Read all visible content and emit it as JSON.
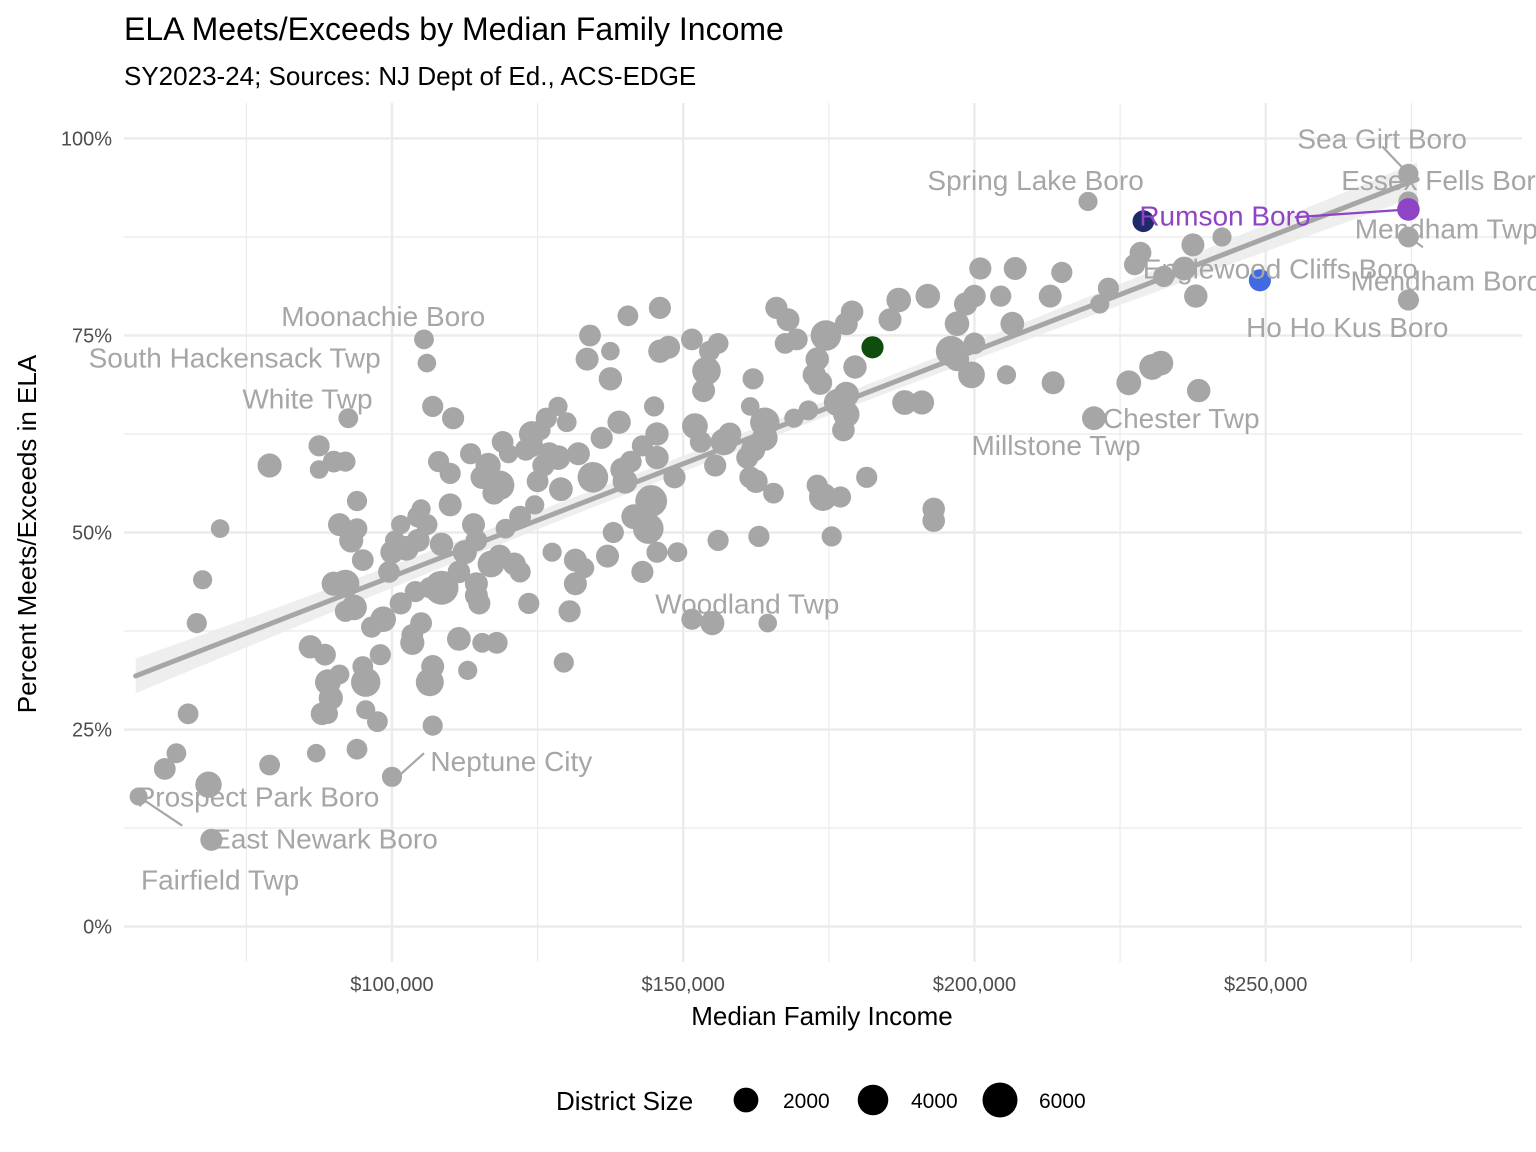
{
  "chart_data": {
    "type": "scatter",
    "title": "ELA Meets/Exceeds by Median Family Income",
    "subtitle": "SY2023-24; Sources: NJ Dept of Ed., ACS-EDGE",
    "xlabel": "Median Family Income",
    "ylabel": "Percent Meets/Exceeds in ELA",
    "xlim": [
      54000,
      294000
    ],
    "ylim": [
      -0.045,
      1.045
    ],
    "x_ticks": [
      100000,
      150000,
      200000,
      250000
    ],
    "x_tick_labels": [
      "$100,000",
      "$150,000",
      "$200,000",
      "$250,000"
    ],
    "y_ticks": [
      0,
      0.25,
      0.5,
      0.75,
      1.0
    ],
    "y_tick_labels": [
      "0%",
      "25%",
      "50%",
      "75%",
      "100%"
    ],
    "grid": true,
    "colors": {
      "default": "#a6a6a6",
      "trend": "#a6a6a6",
      "band": "#ebebeb",
      "grid": "#ebebeb",
      "rumson": "#8e44c4",
      "navy": "#1f2a6b",
      "blue": "#4169e1",
      "green": "#0f4d0f"
    },
    "trend": {
      "x": [
        56000,
        276000
      ],
      "y": [
        0.318,
        0.948
      ],
      "se": 0.022
    },
    "size_legend": {
      "title": "District Size",
      "values": [
        2000,
        4000,
        6000
      ],
      "labels": [
        "2000",
        "4000",
        "6000"
      ]
    },
    "points": [
      [
        56500,
        0.165,
        500
      ],
      [
        61000,
        0.2,
        1200
      ],
      [
        63000,
        0.22,
        800
      ],
      [
        65000,
        0.27,
        1000
      ],
      [
        66500,
        0.385,
        900
      ],
      [
        67500,
        0.44,
        700
      ],
      [
        68500,
        0.18,
        2500
      ],
      [
        69000,
        0.11,
        1300
      ],
      [
        70500,
        0.505,
        600
      ],
      [
        79000,
        0.205,
        1000
      ],
      [
        79000,
        0.585,
        1800
      ],
      [
        86000,
        0.355,
        1600
      ],
      [
        87000,
        0.22,
        600
      ],
      [
        87500,
        0.61,
        1100
      ],
      [
        87500,
        0.58,
        600
      ],
      [
        88000,
        0.27,
        1400
      ],
      [
        88500,
        0.345,
        1200
      ],
      [
        89000,
        0.31,
        2300
      ],
      [
        89000,
        0.27,
        900
      ],
      [
        89500,
        0.29,
        1800
      ],
      [
        90000,
        0.435,
        1800
      ],
      [
        90000,
        0.59,
        1200
      ],
      [
        91000,
        0.32,
        800
      ],
      [
        91000,
        0.51,
        1500
      ],
      [
        92000,
        0.435,
        3000
      ],
      [
        92000,
        0.59,
        900
      ],
      [
        92000,
        0.4,
        1100
      ],
      [
        92500,
        0.645,
        800
      ],
      [
        93000,
        0.49,
        1800
      ],
      [
        93500,
        0.405,
        2200
      ],
      [
        94000,
        0.505,
        1000
      ],
      [
        94000,
        0.225,
        1000
      ],
      [
        94000,
        0.54,
        900
      ],
      [
        95000,
        0.33,
        1000
      ],
      [
        95000,
        0.465,
        1200
      ],
      [
        95500,
        0.275,
        700
      ],
      [
        95500,
        0.31,
        3500
      ],
      [
        96500,
        0.38,
        1100
      ],
      [
        97500,
        0.26,
        1000
      ],
      [
        98000,
        0.345,
        1100
      ],
      [
        98500,
        0.39,
        2200
      ],
      [
        99500,
        0.45,
        1200
      ],
      [
        100000,
        0.19,
        900
      ],
      [
        100000,
        0.475,
        1600
      ],
      [
        100500,
        0.49,
        800
      ],
      [
        101500,
        0.51,
        700
      ],
      [
        101500,
        0.41,
        1300
      ],
      [
        102500,
        0.48,
        2000
      ],
      [
        103500,
        0.37,
        1200
      ],
      [
        103500,
        0.36,
        1800
      ],
      [
        104000,
        0.425,
        1100
      ],
      [
        104500,
        0.52,
        1200
      ],
      [
        104500,
        0.49,
        1500
      ],
      [
        105000,
        0.53,
        700
      ],
      [
        105000,
        0.385,
        1200
      ],
      [
        105500,
        0.745,
        800
      ],
      [
        106000,
        0.715,
        600
      ],
      [
        106000,
        0.51,
        1100
      ],
      [
        106500,
        0.43,
        1100
      ],
      [
        106500,
        0.31,
        3000
      ],
      [
        107000,
        0.33,
        1500
      ],
      [
        107000,
        0.66,
        1100
      ],
      [
        107000,
        0.255,
        900
      ],
      [
        108000,
        0.59,
        1100
      ],
      [
        108500,
        0.43,
        5500
      ],
      [
        108500,
        0.485,
        1600
      ],
      [
        110000,
        0.575,
        1100
      ],
      [
        110000,
        0.535,
        1500
      ],
      [
        110500,
        0.645,
        1300
      ],
      [
        111500,
        0.45,
        1400
      ],
      [
        111500,
        0.365,
        1700
      ],
      [
        112500,
        0.475,
        1800
      ],
      [
        113000,
        0.325,
        700
      ],
      [
        113500,
        0.6,
        1100
      ],
      [
        114000,
        0.51,
        1500
      ],
      [
        114500,
        0.49,
        1200
      ],
      [
        114500,
        0.42,
        1500
      ],
      [
        114500,
        0.435,
        1500
      ],
      [
        115000,
        0.41,
        1300
      ],
      [
        115500,
        0.57,
        1600
      ],
      [
        115500,
        0.36,
        800
      ],
      [
        116500,
        0.585,
        2100
      ],
      [
        117000,
        0.46,
        2600
      ],
      [
        117500,
        0.55,
        1500
      ],
      [
        118000,
        0.36,
        1200
      ],
      [
        118500,
        0.56,
        3500
      ],
      [
        118500,
        0.47,
        1500
      ],
      [
        119000,
        0.615,
        1200
      ],
      [
        119500,
        0.505,
        800
      ],
      [
        120000,
        0.6,
        700
      ],
      [
        121000,
        0.46,
        1500
      ],
      [
        122000,
        0.52,
        1200
      ],
      [
        122000,
        0.45,
        1100
      ],
      [
        123000,
        0.605,
        1200
      ],
      [
        123500,
        0.41,
        1100
      ],
      [
        124000,
        0.61,
        1400
      ],
      [
        124000,
        0.625,
        2300
      ],
      [
        124500,
        0.535,
        700
      ],
      [
        125000,
        0.565,
        1200
      ],
      [
        125500,
        0.63,
        900
      ],
      [
        126000,
        0.585,
        1300
      ],
      [
        126500,
        0.645,
        1100
      ],
      [
        127000,
        0.6,
        1500
      ],
      [
        127500,
        0.475,
        700
      ],
      [
        128500,
        0.595,
        2000
      ],
      [
        128500,
        0.66,
        700
      ],
      [
        129000,
        0.555,
        1700
      ],
      [
        129500,
        0.335,
        900
      ],
      [
        130000,
        0.64,
        800
      ],
      [
        130500,
        0.4,
        1300
      ],
      [
        131500,
        0.435,
        1500
      ],
      [
        131500,
        0.465,
        1500
      ],
      [
        132000,
        0.6,
        1500
      ],
      [
        133000,
        0.455,
        900
      ],
      [
        133500,
        0.72,
        1500
      ],
      [
        134000,
        0.75,
        1200
      ],
      [
        134500,
        0.57,
        4000
      ],
      [
        136000,
        0.62,
        1300
      ],
      [
        137000,
        0.47,
        1500
      ],
      [
        137500,
        0.695,
        1600
      ],
      [
        137500,
        0.73,
        600
      ],
      [
        138000,
        0.5,
        1100
      ],
      [
        139000,
        0.64,
        1600
      ],
      [
        139500,
        0.58,
        1600
      ],
      [
        140000,
        0.565,
        2000
      ],
      [
        140500,
        0.775,
        1000
      ],
      [
        141000,
        0.59,
        1200
      ],
      [
        141500,
        0.52,
        2000
      ],
      [
        143000,
        0.45,
        1300
      ],
      [
        143000,
        0.61,
        1100
      ],
      [
        144000,
        0.505,
        4000
      ],
      [
        144500,
        0.54,
        4500
      ],
      [
        145000,
        0.66,
        900
      ],
      [
        145500,
        0.625,
        1600
      ],
      [
        145500,
        0.595,
        1600
      ],
      [
        145500,
        0.475,
        1100
      ],
      [
        146000,
        0.785,
        1300
      ],
      [
        146000,
        0.73,
        1600
      ],
      [
        147500,
        0.735,
        1500
      ],
      [
        148500,
        0.57,
        1300
      ],
      [
        149000,
        0.475,
        800
      ],
      [
        151500,
        0.745,
        1200
      ],
      [
        151500,
        0.39,
        1100
      ],
      [
        152000,
        0.635,
        2300
      ],
      [
        153000,
        0.615,
        1200
      ],
      [
        153500,
        0.68,
        1500
      ],
      [
        154000,
        0.705,
        3200
      ],
      [
        154500,
        0.73,
        1000
      ],
      [
        155000,
        0.385,
        1800
      ],
      [
        155500,
        0.585,
        1300
      ],
      [
        156000,
        0.49,
        1100
      ],
      [
        156000,
        0.74,
        1000
      ],
      [
        157000,
        0.615,
        2600
      ],
      [
        158000,
        0.625,
        1500
      ],
      [
        161000,
        0.595,
        1300
      ],
      [
        161500,
        0.66,
        600
      ],
      [
        161500,
        0.57,
        1200
      ],
      [
        162000,
        0.695,
        1100
      ],
      [
        162000,
        0.605,
        1800
      ],
      [
        162500,
        0.565,
        1600
      ],
      [
        163000,
        0.495,
        1100
      ],
      [
        164000,
        0.64,
        3500
      ],
      [
        164000,
        0.62,
        2300
      ],
      [
        164500,
        0.385,
        600
      ],
      [
        165500,
        0.55,
        1000
      ],
      [
        166000,
        0.785,
        1300
      ],
      [
        167500,
        0.74,
        1000
      ],
      [
        168000,
        0.77,
        1500
      ],
      [
        169000,
        0.645,
        700
      ],
      [
        169500,
        0.745,
        1200
      ],
      [
        171500,
        0.655,
        800
      ],
      [
        172500,
        0.7,
        1600
      ],
      [
        173000,
        0.56,
        1100
      ],
      [
        173000,
        0.72,
        1600
      ],
      [
        173500,
        0.69,
        1800
      ],
      [
        174000,
        0.545,
        3000
      ],
      [
        174500,
        0.75,
        4000
      ],
      [
        175500,
        0.495,
        900
      ],
      [
        176500,
        0.665,
        2800
      ],
      [
        177000,
        0.545,
        1100
      ],
      [
        177500,
        0.63,
        1400
      ],
      [
        178000,
        0.65,
        2500
      ],
      [
        178000,
        0.675,
        2200
      ],
      [
        178000,
        0.765,
        1500
      ],
      [
        179000,
        0.78,
        1400
      ],
      [
        179500,
        0.71,
        1600
      ],
      [
        181500,
        0.57,
        1100
      ],
      [
        182500,
        0.735,
        1300,
        "green"
      ],
      [
        185500,
        0.77,
        1500
      ],
      [
        187000,
        0.795,
        1900
      ],
      [
        188000,
        0.665,
        2000
      ],
      [
        191000,
        0.665,
        1800
      ],
      [
        192000,
        0.8,
        1900
      ],
      [
        193000,
        0.53,
        1400
      ],
      [
        193000,
        0.515,
        1400
      ],
      [
        196000,
        0.73,
        4000
      ],
      [
        197000,
        0.72,
        1800
      ],
      [
        197000,
        0.765,
        1900
      ],
      [
        198500,
        0.79,
        1600
      ],
      [
        199500,
        0.7,
        2600
      ],
      [
        200000,
        0.74,
        1200
      ],
      [
        200000,
        0.8,
        1400
      ],
      [
        201000,
        0.835,
        1300
      ],
      [
        204500,
        0.8,
        1100
      ],
      [
        205500,
        0.7,
        700
      ],
      [
        206500,
        0.765,
        1700
      ],
      [
        207000,
        0.835,
        1500
      ],
      [
        213000,
        0.8,
        1500
      ],
      [
        213500,
        0.69,
        1500
      ],
      [
        215000,
        0.83,
        1100
      ],
      [
        219500,
        0.92,
        700
      ],
      [
        220500,
        0.645,
        1700
      ],
      [
        221500,
        0.79,
        700
      ],
      [
        223000,
        0.81,
        1100
      ],
      [
        226500,
        0.69,
        2000
      ],
      [
        227500,
        0.84,
        1100
      ],
      [
        228500,
        0.855,
        1200
      ],
      [
        229000,
        0.895,
        1200,
        "navy"
      ],
      [
        230500,
        0.71,
        2300
      ],
      [
        232000,
        0.715,
        2000
      ],
      [
        232500,
        0.825,
        1100
      ],
      [
        236000,
        0.835,
        1700
      ],
      [
        237500,
        0.865,
        1500
      ],
      [
        238000,
        0.8,
        1600
      ],
      [
        238500,
        0.68,
        1600
      ],
      [
        242500,
        0.875,
        700
      ],
      [
        249000,
        0.82,
        1300,
        "blue"
      ],
      [
        274500,
        0.955,
        900
      ],
      [
        274500,
        0.92,
        900
      ],
      [
        274500,
        0.91,
        1400,
        "rumson"
      ],
      [
        274500,
        0.875,
        1000
      ],
      [
        274500,
        0.795,
        1100
      ]
    ],
    "annotations": [
      {
        "text": "Sea Girt Boro",
        "x": 270000,
        "y": 1.0,
        "anchor": "middle"
      },
      {
        "text": "Spring Lake Boro",
        "x": 210500,
        "y": 0.947,
        "anchor": "middle"
      },
      {
        "text": "Essex Fells Boro",
        "x": 281000,
        "y": 0.947,
        "anchor": "middle"
      },
      {
        "text": "Rumson Boro",
        "x": 243000,
        "y": 0.902,
        "anchor": "middle",
        "highlight": true
      },
      {
        "text": "Mendham Twp",
        "x": 281000,
        "y": 0.886,
        "anchor": "middle"
      },
      {
        "text": "Englewood Cliffs Boro",
        "x": 252500,
        "y": 0.835,
        "anchor": "middle"
      },
      {
        "text": "Mendham Boro",
        "x": 281000,
        "y": 0.82,
        "anchor": "middle"
      },
      {
        "text": "Moonachie Boro",
        "x": 98500,
        "y": 0.775,
        "anchor": "middle"
      },
      {
        "text": "Ho Ho Kus Boro",
        "x": 264000,
        "y": 0.761,
        "anchor": "middle"
      },
      {
        "text": "South Hackensack Twp",
        "x": 73000,
        "y": 0.722,
        "anchor": "middle"
      },
      {
        "text": "White Twp",
        "x": 85500,
        "y": 0.67,
        "anchor": "middle"
      },
      {
        "text": "Chester Twp",
        "x": 235500,
        "y": 0.645,
        "anchor": "middle"
      },
      {
        "text": "Millstone Twp",
        "x": 214000,
        "y": 0.611,
        "anchor": "middle"
      },
      {
        "text": "Woodland Twp",
        "x": 161000,
        "y": 0.41,
        "anchor": "middle"
      },
      {
        "text": "Neptune City",
        "x": 120500,
        "y": 0.21,
        "anchor": "middle"
      },
      {
        "text": "Prospect Park Boro",
        "x": 77000,
        "y": 0.165,
        "anchor": "middle"
      },
      {
        "text": "East Newark Boro",
        "x": 88500,
        "y": 0.112,
        "anchor": "middle"
      },
      {
        "text": "Fairfield Twp",
        "x": 70500,
        "y": 0.06,
        "anchor": "middle"
      }
    ],
    "leader_lines": [
      {
        "from": [
          270000,
          0.99
        ],
        "to": [
          274500,
          0.955
        ]
      },
      {
        "from": [
          255000,
          0.9
        ],
        "to": [
          274500,
          0.91
        ],
        "highlight": true
      },
      {
        "from": [
          277000,
          0.862
        ],
        "to": [
          274500,
          0.875
        ]
      },
      {
        "from": [
          101000,
          0.19
        ],
        "to": [
          105500,
          0.22
        ]
      },
      {
        "from": [
          56500,
          0.165
        ],
        "to": [
          64000,
          0.128
        ]
      }
    ]
  }
}
